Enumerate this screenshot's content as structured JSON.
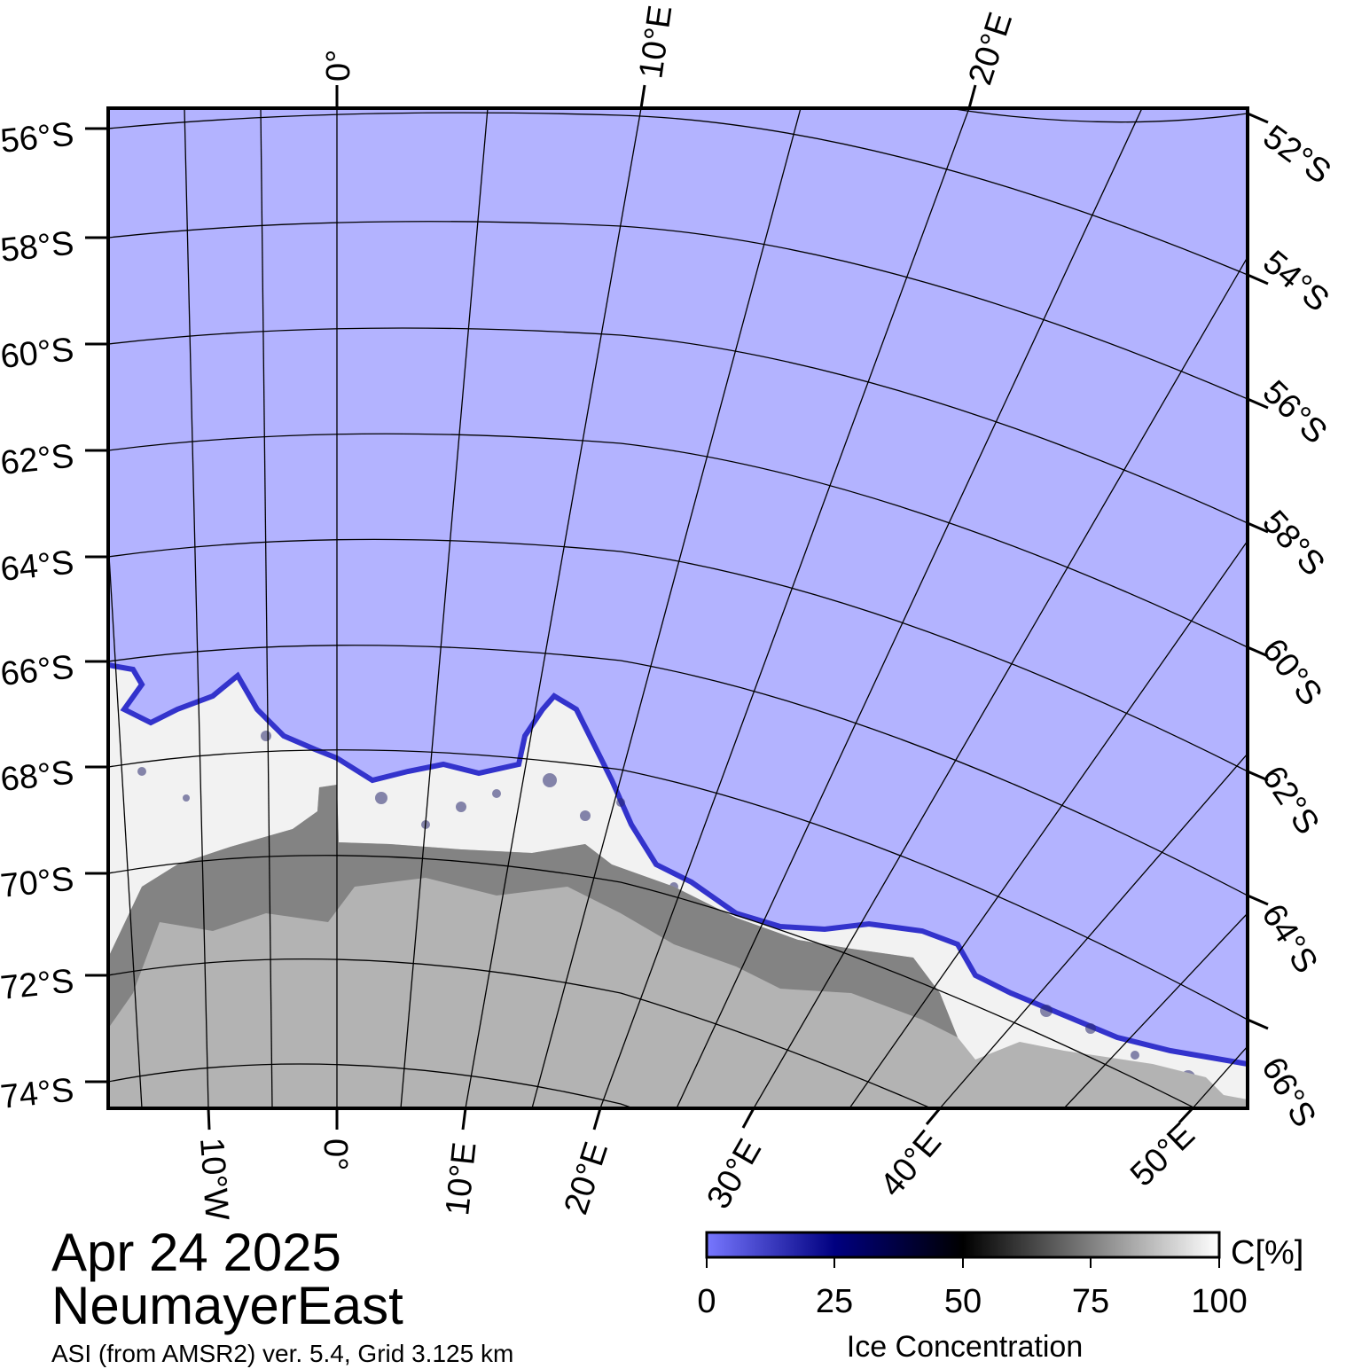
{
  "map": {
    "colors": {
      "ocean": "#b3b3ff",
      "land": "#b3b3b3",
      "ice_shelf": "#838383",
      "sea_ice": "#f2f2f2",
      "ice_edge": "#3333cc"
    },
    "top_lon_labels": [
      "0°",
      "10°E",
      "20°E"
    ],
    "left_lat_labels": [
      "56°S",
      "58°S",
      "60°S",
      "62°S",
      "64°S",
      "66°S",
      "68°S",
      "70°S",
      "72°S",
      "74°S"
    ],
    "right_lat_labels": [
      "52°S",
      "54°S",
      "56°S",
      "58°S",
      "60°S",
      "62°S",
      "64°S",
      "66°S"
    ],
    "bottom_lon_labels": [
      "10°W",
      "0°",
      "10°E",
      "20°E",
      "30°E",
      "40°E",
      "50°E"
    ]
  },
  "info": {
    "date": "Apr 24 2025",
    "region": "NeumayerEast",
    "source": "ASI (from AMSR2) ver. 5.4,  Grid 3.125 km"
  },
  "colorbar": {
    "unit": "C[%]",
    "title": "Ice Concentration",
    "ticks": [
      "0",
      "25",
      "50",
      "75",
      "100"
    ],
    "gradient_stops": [
      "#7777ff",
      "#000080",
      "#000000",
      "#ffffff"
    ]
  }
}
